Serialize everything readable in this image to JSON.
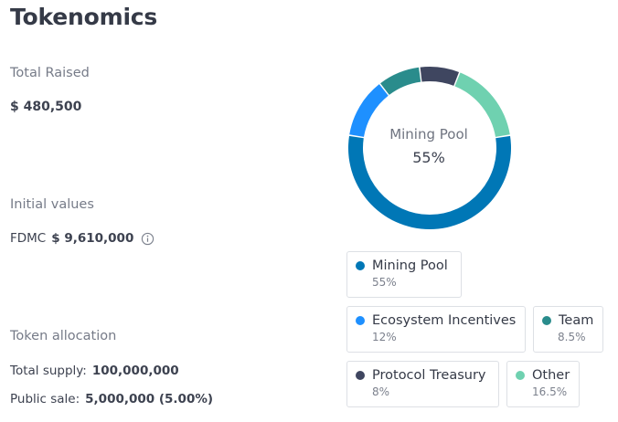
{
  "page": {
    "title": "Tokenomics",
    "total_raised_label": "Total Raised",
    "total_raised_value": "$ 480,500",
    "initial_values_label": "Initial values",
    "fdmc_label": "FDMC",
    "fdmc_value": "$ 9,610,000",
    "token_allocation_label": "Token allocation",
    "total_supply_label": "Total supply:",
    "total_supply_value": "100,000,000",
    "public_sale_label": "Public sale:",
    "public_sale_value": "5,000,000 (5.00%)",
    "info_icon": "info-circle-icon"
  },
  "chart_data": {
    "type": "pie",
    "style": "donut",
    "center_label": {
      "name": "Mining Pool",
      "value": "55%"
    },
    "slices": [
      {
        "name": "Mining Pool",
        "value": 55,
        "label": "55%",
        "color": "#0077b6"
      },
      {
        "name": "Ecosystem Incentives",
        "value": 12,
        "label": "12%",
        "color": "#1e90ff"
      },
      {
        "name": "Team",
        "value": 8.5,
        "label": "8.5%",
        "color": "#2a8c8c"
      },
      {
        "name": "Protocol Treasury",
        "value": 8,
        "label": "8%",
        "color": "#3f4660"
      },
      {
        "name": "Other",
        "value": 16.5,
        "label": "16.5%",
        "color": "#6fd1b0"
      }
    ],
    "legend_placement": "below"
  }
}
